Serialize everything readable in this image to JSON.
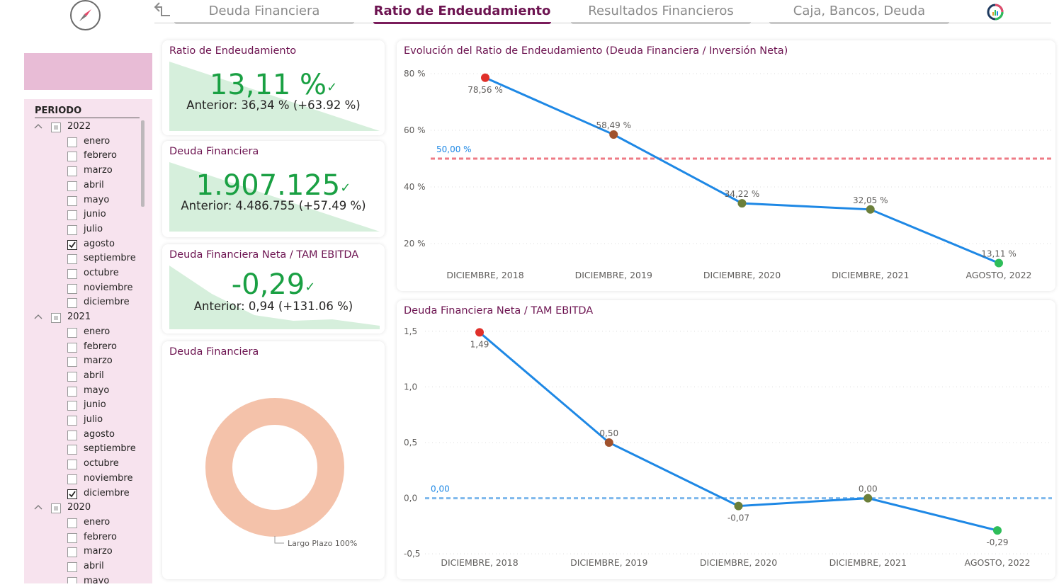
{
  "nav": {
    "tabs": [
      {
        "label": "Deuda Financiera",
        "active": false
      },
      {
        "label": "Ratio de Endeudamiento",
        "active": true
      },
      {
        "label": "Resultados Financieros",
        "active": false
      },
      {
        "label": "Caja, Bancos, Deuda",
        "active": false
      }
    ],
    "icons": [
      "compass-icon",
      "back-arrow-icon",
      "report-logo-icon"
    ]
  },
  "slicer": {
    "title": "PERIODO",
    "years": [
      {
        "year": "2022",
        "months": [
          {
            "name": "enero",
            "checked": false
          },
          {
            "name": "febrero",
            "checked": false
          },
          {
            "name": "marzo",
            "checked": false
          },
          {
            "name": "abril",
            "checked": false
          },
          {
            "name": "mayo",
            "checked": false
          },
          {
            "name": "junio",
            "checked": false
          },
          {
            "name": "julio",
            "checked": false
          },
          {
            "name": "agosto",
            "checked": true
          },
          {
            "name": "septiembre",
            "checked": false
          },
          {
            "name": "octubre",
            "checked": false
          },
          {
            "name": "noviembre",
            "checked": false
          },
          {
            "name": "diciembre",
            "checked": false
          }
        ]
      },
      {
        "year": "2021",
        "months": [
          {
            "name": "enero",
            "checked": false
          },
          {
            "name": "febrero",
            "checked": false
          },
          {
            "name": "marzo",
            "checked": false
          },
          {
            "name": "abril",
            "checked": false
          },
          {
            "name": "mayo",
            "checked": false
          },
          {
            "name": "junio",
            "checked": false
          },
          {
            "name": "julio",
            "checked": false
          },
          {
            "name": "agosto",
            "checked": false
          },
          {
            "name": "septiembre",
            "checked": false
          },
          {
            "name": "octubre",
            "checked": false
          },
          {
            "name": "noviembre",
            "checked": false
          },
          {
            "name": "diciembre",
            "checked": true
          }
        ]
      },
      {
        "year": "2020",
        "months": [
          {
            "name": "enero",
            "checked": false
          },
          {
            "name": "febrero",
            "checked": false
          },
          {
            "name": "marzo",
            "checked": false
          },
          {
            "name": "abril",
            "checked": false
          },
          {
            "name": "mayo",
            "checked": false
          }
        ]
      }
    ]
  },
  "kpis": [
    {
      "title": "Ratio de Endeudamiento",
      "value": "13,11 %",
      "check": "✓",
      "previous": "Anterior: 36,34 % (+63.92 %)"
    },
    {
      "title": "Deuda Financiera",
      "value": "1.907.125",
      "check": "✓",
      "previous": "Anterior: 4.486.755 (+57.49 %)"
    },
    {
      "title": "Deuda Financiera Neta / TAM EBITDA",
      "value": "-0,29",
      "check": "✓",
      "previous": "Anterior: 0,94 (+131.06 %)"
    }
  ],
  "donut": {
    "title": "Deuda Financiera",
    "slice_label": "Largo Plazo 100%",
    "slices": [
      {
        "name": "Largo Plazo",
        "percent": 100,
        "color": "#f4c2aa"
      }
    ]
  },
  "chart_data": [
    {
      "type": "line",
      "title": "Evolución del Ratio de Endeudamiento (Deuda Financiera / Inversión Neta)",
      "categories": [
        "DICIEMBRE, 2018",
        "DICIEMBRE, 2019",
        "DICIEMBRE, 2020",
        "DICIEMBRE, 2021",
        "AGOSTO, 2022"
      ],
      "values": [
        78.56,
        58.49,
        34.22,
        32.05,
        13.11
      ],
      "value_labels": [
        "78,56 %",
        "58,49 %",
        "34,22 %",
        "32,05 %",
        "13,11 %"
      ],
      "marker_colors": [
        "#e0302a",
        "#a0522d",
        "#6b7f3a",
        "#6b7f3a",
        "#2ebd59"
      ],
      "ylim": [
        10,
        82
      ],
      "yticks": [
        20,
        40,
        60,
        80
      ],
      "ytick_labels": [
        "20 %",
        "40 %",
        "60 %",
        "80 %"
      ],
      "reference_line": {
        "value": 50,
        "label": "50,00 %",
        "color": "#ee7b86"
      },
      "line_color": "#1e88e5",
      "grid": true
    },
    {
      "type": "line",
      "title": "Deuda Financiera Neta / TAM EBITDA",
      "categories": [
        "DICIEMBRE, 2018",
        "DICIEMBRE, 2019",
        "DICIEMBRE, 2020",
        "DICIEMBRE, 2021",
        "AGOSTO, 2022"
      ],
      "values": [
        1.49,
        0.5,
        -0.07,
        0.0,
        -0.29
      ],
      "value_labels": [
        "1,49",
        "0,50",
        "-0,07",
        "0,00",
        "-0,29"
      ],
      "marker_colors": [
        "#e0302a",
        "#a0522d",
        "#6b7f3a",
        "#6b7f3a",
        "#2ebd59"
      ],
      "ylim": [
        -0.55,
        1.55
      ],
      "yticks": [
        -0.5,
        0.0,
        0.5,
        1.0,
        1.5
      ],
      "ytick_labels": [
        "-0,5",
        "0,0",
        "0,5",
        "1,0",
        "1,5"
      ],
      "reference_line": {
        "value": 0,
        "label": "0,00",
        "color": "#7db8ec"
      },
      "line_color": "#1e88e5",
      "grid": true
    }
  ]
}
